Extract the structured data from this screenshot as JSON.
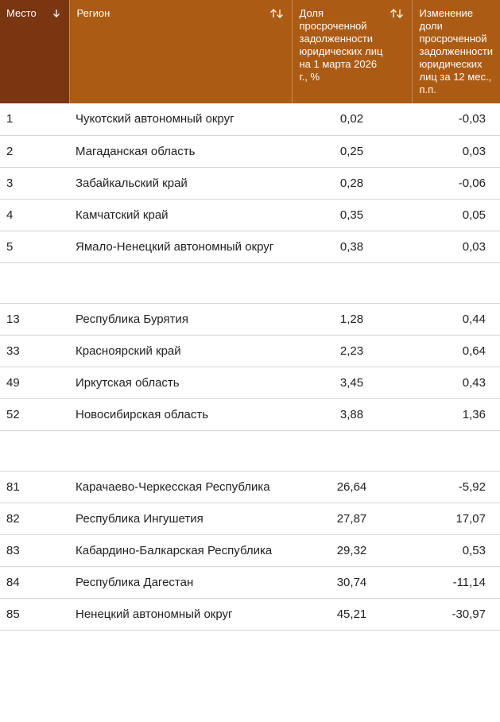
{
  "header": {
    "columns": [
      "Место",
      "Регион",
      "Доля просроченной задолженности юридических лиц на 1 марта 2026 г., %",
      "Изменение доли просроченной задолженности юридических лиц за 12 мес., п.п."
    ]
  },
  "table": {
    "groups": [
      [
        [
          "1",
          "Чукотский автономный округ",
          "0,02",
          "-0,03"
        ],
        [
          "2",
          "Магаданская область",
          "0,25",
          "0,03"
        ],
        [
          "3",
          "Забайкальский край",
          "0,28",
          "-0,06"
        ],
        [
          "4",
          "Камчатский край",
          "0,35",
          "0,05"
        ],
        [
          "5",
          "Ямало-Ненецкий автономный округ",
          "0,38",
          "0,03"
        ]
      ],
      [
        [
          "13",
          "Республика Бурятия",
          "1,28",
          "0,44"
        ],
        [
          "33",
          "Красноярский край",
          "2,23",
          "0,64"
        ],
        [
          "49",
          "Иркутская область",
          "3,45",
          "0,43"
        ],
        [
          "52",
          "Новосибирская область",
          "3,88",
          "1,36"
        ]
      ],
      [
        [
          "81",
          "Карачаево-Черкесская Республика",
          "26,64",
          "-5,92"
        ],
        [
          "82",
          "Республика Ингушетия",
          "27,87",
          "17,07"
        ],
        [
          "83",
          "Кабардино-Балкарская Республика",
          "29,32",
          "0,53"
        ],
        [
          "84",
          "Республика Дагестан",
          "30,74",
          "-11,14"
        ],
        [
          "85",
          "Ненецкий автономный округ",
          "45,21",
          "-30,97"
        ]
      ]
    ]
  }
}
